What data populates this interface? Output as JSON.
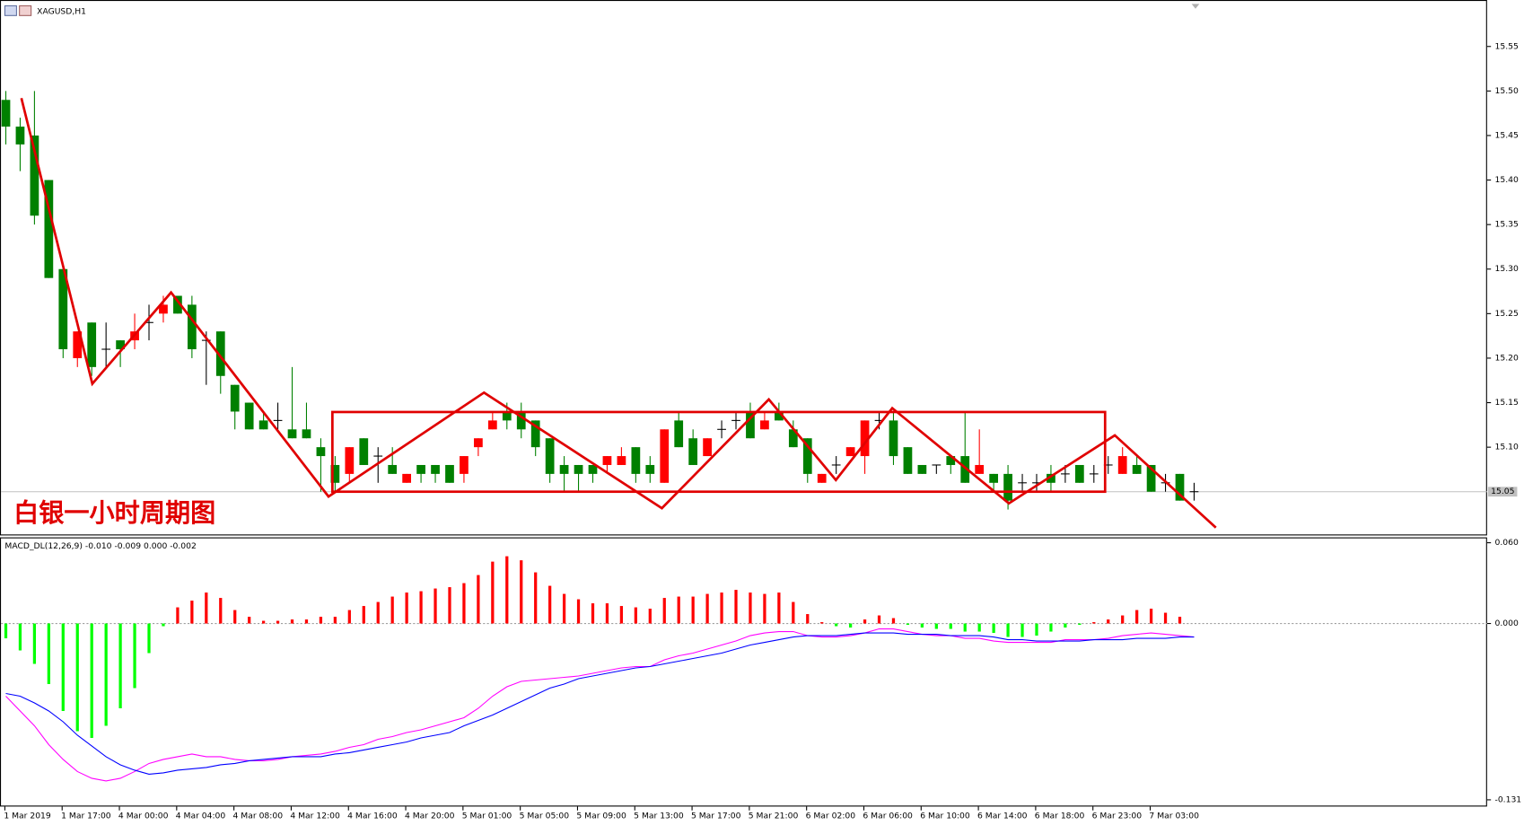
{
  "chart_data": [
    {
      "type": "candlestick",
      "title": "XAGUSD,H1",
      "annotation": "白银一小时周期图",
      "categories": [
        "1 Mar 2019",
        null,
        null,
        null,
        "1 Mar 17:00",
        null,
        null,
        null,
        "4 Mar 00:00",
        null,
        null,
        null,
        "4 Mar 04:00",
        null,
        null,
        null,
        "4 Mar 08:00",
        null,
        null,
        null,
        "4 Mar 12:00",
        null,
        null,
        null,
        "4 Mar 16:00",
        null,
        null,
        null,
        "4 Mar 20:00",
        null,
        null,
        null,
        "5 Mar 01:00",
        null,
        null,
        null,
        "5 Mar 05:00",
        null,
        null,
        null,
        "5 Mar 09:00",
        null,
        null,
        null,
        "5 Mar 13:00",
        null,
        null,
        null,
        "5 Mar 17:00",
        null,
        null,
        null,
        "5 Mar 21:00",
        null,
        null,
        null,
        "6 Mar 02:00",
        null,
        null,
        null,
        "6 Mar 06:00",
        null,
        null,
        null,
        "6 Mar 10:00",
        null,
        null,
        null,
        "6 Mar 14:00",
        null,
        null,
        null,
        "6 Mar 18:00",
        null,
        null,
        null,
        "6 Mar 23:00",
        null,
        null,
        null,
        "7 Mar 03:00",
        null,
        null,
        null
      ],
      "open": [
        15.49,
        15.46,
        15.45,
        15.4,
        15.3,
        15.2,
        15.24,
        15.21,
        15.22,
        15.22,
        15.24,
        15.25,
        15.27,
        15.26,
        15.22,
        15.23,
        15.17,
        15.15,
        15.13,
        15.13,
        15.12,
        15.12,
        15.1,
        15.08,
        15.07,
        15.11,
        15.09,
        15.08,
        15.06,
        15.08,
        15.08,
        15.08,
        15.07,
        15.1,
        15.12,
        15.14,
        15.14,
        15.13,
        15.11,
        15.08,
        15.08,
        15.08,
        15.08,
        15.08,
        15.1,
        15.08,
        15.06,
        15.13,
        15.11,
        15.09,
        15.12,
        15.13,
        15.14,
        15.12,
        15.14,
        15.12,
        15.11,
        15.06,
        15.08,
        15.09,
        15.09,
        15.13,
        15.13,
        15.1,
        15.08,
        15.08,
        15.09,
        15.09,
        15.07,
        15.07,
        15.07,
        15.06,
        15.06,
        15.07,
        15.07,
        15.08,
        15.07,
        15.08,
        15.07,
        15.08,
        15.08,
        15.06,
        15.07,
        15.05
      ],
      "high": [
        15.5,
        15.47,
        15.5,
        15.4,
        15.3,
        15.23,
        15.24,
        15.24,
        15.22,
        15.25,
        15.26,
        15.27,
        15.27,
        15.27,
        15.23,
        15.23,
        15.17,
        15.15,
        15.14,
        15.15,
        15.19,
        15.15,
        15.11,
        15.09,
        15.1,
        15.11,
        15.1,
        15.1,
        15.07,
        15.08,
        15.08,
        15.08,
        15.09,
        15.11,
        15.14,
        15.15,
        15.15,
        15.13,
        15.11,
        15.09,
        15.08,
        15.08,
        15.09,
        15.1,
        15.1,
        15.09,
        15.12,
        15.14,
        15.12,
        15.11,
        15.13,
        15.14,
        15.15,
        15.14,
        15.15,
        15.13,
        15.11,
        15.07,
        15.09,
        15.1,
        15.13,
        15.14,
        15.14,
        15.1,
        15.08,
        15.08,
        15.09,
        15.14,
        15.12,
        15.07,
        15.08,
        15.07,
        15.07,
        15.08,
        15.08,
        15.08,
        15.08,
        15.09,
        15.1,
        15.09,
        15.08,
        15.07,
        15.07,
        15.06
      ],
      "low": [
        15.44,
        15.41,
        15.35,
        15.29,
        15.2,
        15.19,
        15.18,
        15.19,
        15.19,
        15.21,
        15.22,
        15.24,
        15.25,
        15.2,
        15.17,
        15.16,
        15.12,
        15.12,
        15.12,
        15.12,
        15.11,
        15.11,
        15.05,
        15.05,
        15.06,
        15.08,
        15.06,
        15.07,
        15.06,
        15.06,
        15.06,
        15.06,
        15.06,
        15.09,
        15.12,
        15.12,
        15.11,
        15.09,
        15.06,
        15.05,
        15.05,
        15.06,
        15.07,
        15.08,
        15.06,
        15.06,
        15.06,
        15.1,
        15.08,
        15.09,
        15.11,
        15.12,
        15.11,
        15.12,
        15.13,
        15.1,
        15.06,
        15.06,
        15.07,
        15.09,
        15.07,
        15.12,
        15.08,
        15.07,
        15.07,
        15.07,
        15.07,
        15.06,
        15.07,
        15.05,
        15.03,
        15.05,
        15.05,
        15.05,
        15.06,
        15.06,
        15.06,
        15.07,
        15.07,
        15.07,
        15.05,
        15.05,
        15.04,
        15.04
      ],
      "close": [
        15.46,
        15.44,
        15.36,
        15.29,
        15.21,
        15.23,
        15.19,
        15.21,
        15.21,
        15.23,
        15.24,
        15.26,
        15.25,
        15.21,
        15.22,
        15.18,
        15.14,
        15.12,
        15.12,
        15.13,
        15.11,
        15.11,
        15.09,
        15.06,
        15.1,
        15.08,
        15.09,
        15.07,
        15.07,
        15.07,
        15.07,
        15.06,
        15.09,
        15.11,
        15.13,
        15.13,
        15.12,
        15.1,
        15.07,
        15.07,
        15.07,
        15.07,
        15.09,
        15.09,
        15.07,
        15.07,
        15.12,
        15.1,
        15.08,
        15.11,
        15.12,
        15.13,
        15.11,
        15.13,
        15.13,
        15.1,
        15.07,
        15.07,
        15.08,
        15.1,
        15.13,
        15.13,
        15.09,
        15.07,
        15.07,
        15.08,
        15.08,
        15.06,
        15.08,
        15.06,
        15.04,
        15.06,
        15.06,
        15.06,
        15.07,
        15.06,
        15.07,
        15.08,
        15.09,
        15.07,
        15.05,
        15.06,
        15.04,
        15.05
      ],
      "up_color": "#ff0000",
      "down_color": "#008000",
      "doji_color": "#000000",
      "ylim": [
        15.002,
        15.6
      ],
      "yticks": [
        15.55,
        {
          "value": 15.5,
          "label": "15.50"
        },
        15.45,
        {
          "value": 15.4,
          "label": "15.40"
        },
        15.35,
        {
          "value": 15.3,
          "label": "15.30"
        },
        15.25,
        {
          "value": 15.2,
          "label": "15.20"
        },
        15.15,
        {
          "value": 15.1,
          "label": "15.10"
        }
      ],
      "last_price": 15.05
    },
    {
      "type": "macd",
      "label": "MACD_DL(12,26,9) -0.010 -0.009 0.000 -0.002",
      "histogram": [
        -0.011,
        -0.02,
        -0.03,
        -0.045,
        -0.065,
        -0.08,
        -0.085,
        -0.076,
        -0.063,
        -0.048,
        -0.022,
        -0.002,
        0.012,
        0.017,
        0.023,
        0.019,
        0.01,
        0.005,
        0.002,
        0.002,
        0.003,
        0.003,
        0.005,
        0.005,
        0.01,
        0.013,
        0.016,
        0.02,
        0.023,
        0.024,
        0.026,
        0.027,
        0.03,
        0.036,
        0.046,
        0.05,
        0.047,
        0.038,
        0.028,
        0.022,
        0.018,
        0.015,
        0.015,
        0.013,
        0.012,
        0.011,
        0.019,
        0.02,
        0.02,
        0.022,
        0.023,
        0.025,
        0.023,
        0.022,
        0.023,
        0.016,
        0.007,
        0.001,
        -0.002,
        -0.003,
        0.003,
        0.006,
        0.004,
        -0.001,
        -0.003,
        -0.004,
        -0.004,
        -0.006,
        -0.006,
        -0.007,
        -0.01,
        -0.01,
        -0.009,
        -0.006,
        -0.003,
        -0.001,
        0.001,
        0.003,
        0.006,
        0.01,
        0.011,
        0.008,
        0.005,
        0.0
      ],
      "positive_color": "#ff0000",
      "negative_color": "#00ff00",
      "series": [
        {
          "color": "#ff00ff",
          "values": [
            -0.054,
            -0.065,
            -0.076,
            -0.09,
            -0.101,
            -0.11,
            -0.115,
            -0.117,
            -0.115,
            -0.11,
            -0.104,
            -0.101,
            -0.099,
            -0.097,
            -0.099,
            -0.099,
            -0.101,
            -0.102,
            -0.102,
            -0.101,
            -0.099,
            -0.098,
            -0.097,
            -0.095,
            -0.092,
            -0.09,
            -0.086,
            -0.084,
            -0.081,
            -0.079,
            -0.076,
            -0.073,
            -0.07,
            -0.063,
            -0.054,
            -0.047,
            -0.043,
            -0.042,
            -0.041,
            -0.04,
            -0.039,
            -0.037,
            -0.035,
            -0.033,
            -0.032,
            -0.032,
            -0.027,
            -0.024,
            -0.022,
            -0.019,
            -0.016,
            -0.013,
            -0.009,
            -0.007,
            -0.006,
            -0.006,
            -0.009,
            -0.01,
            -0.01,
            -0.009,
            -0.007,
            -0.004,
            -0.004,
            -0.006,
            -0.008,
            -0.009,
            -0.009,
            -0.011,
            -0.011,
            -0.013,
            -0.014,
            -0.014,
            -0.014,
            -0.014,
            -0.012,
            -0.012,
            -0.012,
            -0.011,
            -0.009,
            -0.008,
            -0.007,
            -0.008,
            -0.009,
            -0.01
          ]
        },
        {
          "color": "#0000ff",
          "values": [
            -0.052,
            -0.054,
            -0.059,
            -0.065,
            -0.073,
            -0.083,
            -0.091,
            -0.099,
            -0.105,
            -0.109,
            -0.112,
            -0.111,
            -0.109,
            -0.108,
            -0.107,
            -0.105,
            -0.104,
            -0.102,
            -0.101,
            -0.1,
            -0.099,
            -0.099,
            -0.099,
            -0.097,
            -0.096,
            -0.094,
            -0.092,
            -0.09,
            -0.088,
            -0.085,
            -0.083,
            -0.081,
            -0.076,
            -0.072,
            -0.068,
            -0.063,
            -0.058,
            -0.053,
            -0.048,
            -0.045,
            -0.041,
            -0.039,
            -0.037,
            -0.035,
            -0.033,
            -0.032,
            -0.03,
            -0.028,
            -0.026,
            -0.024,
            -0.022,
            -0.019,
            -0.016,
            -0.014,
            -0.012,
            -0.01,
            -0.009,
            -0.009,
            -0.009,
            -0.008,
            -0.007,
            -0.007,
            -0.007,
            -0.008,
            -0.008,
            -0.008,
            -0.009,
            -0.009,
            -0.009,
            -0.01,
            -0.012,
            -0.012,
            -0.013,
            -0.013,
            -0.013,
            -0.013,
            -0.012,
            -0.012,
            -0.012,
            -0.011,
            -0.011,
            -0.011,
            -0.01,
            -0.01
          ]
        }
      ],
      "ylim": [
        -0.136,
        0.064
      ],
      "yticks": [
        {
          "value": 0.06,
          "label": "0.060"
        },
        {
          "value": 0,
          "label": "0.000"
        },
        {
          "value": -0.131,
          "label": "-0.131"
        }
      ]
    }
  ]
}
